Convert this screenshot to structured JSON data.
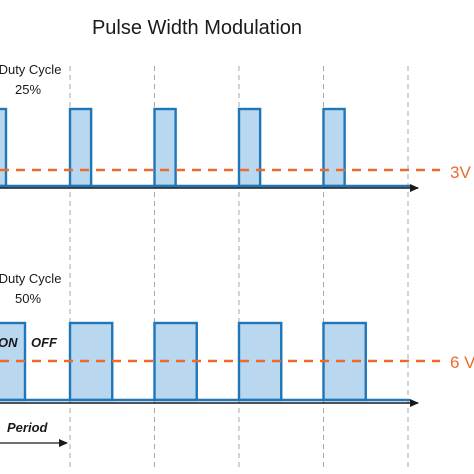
{
  "title": "Pulse Width Modulation",
  "colors": {
    "pulse_fill": "#b9d7ee",
    "pulse_stroke": "#1f76b8",
    "average_line": "#ec6a2c",
    "axis": "#1a1a1a",
    "period_marker": "#a8a8a8"
  },
  "panels": [
    {
      "duty_label": "Duty Cycle",
      "duty_value": "25%",
      "duty_fraction": 0.25,
      "average_label": "3V",
      "on_label": "",
      "off_label": ""
    },
    {
      "duty_label": "Duty Cycle",
      "duty_value": "50%",
      "duty_fraction": 0.5,
      "average_label": "6 V",
      "on_label": "ON",
      "off_label": "OFF"
    }
  ],
  "period_label": "Period"
}
